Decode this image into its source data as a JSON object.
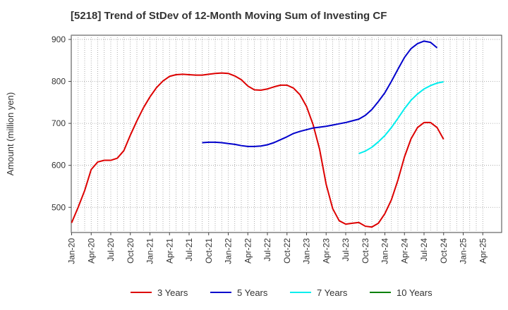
{
  "chart_data": {
    "type": "line",
    "title": "[5218]  Trend of StDev of 12-Month Moving Sum of Investing CF",
    "xlabel": "",
    "ylabel": "Amount (million yen)",
    "ylim": [
      440,
      910
    ],
    "y_ticks": [
      500,
      600,
      700,
      800,
      900
    ],
    "x_tick_labels": [
      "Jan-20",
      "Apr-20",
      "Jul-20",
      "Oct-20",
      "Jan-21",
      "Apr-21",
      "Jul-21",
      "Oct-21",
      "Jan-22",
      "Apr-22",
      "Jul-22",
      "Oct-22",
      "Jan-23",
      "Apr-23",
      "Jul-23",
      "Oct-23",
      "Jan-24",
      "Apr-24",
      "Jul-24",
      "Oct-24",
      "Jan-25",
      "Apr-25"
    ],
    "grid": true,
    "legend_position": "bottom",
    "series": [
      {
        "name": "3 Years",
        "color": "#dd0000",
        "start": "2020-01",
        "values": [
          463,
          500,
          540,
          590,
          608,
          612,
          612,
          617,
          635,
          672,
          706,
          737,
          763,
          785,
          801,
          812,
          816,
          817,
          816,
          815,
          815,
          817,
          819,
          820,
          819,
          813,
          804,
          789,
          780,
          779,
          782,
          787,
          791,
          791,
          784,
          768,
          740,
          697,
          638,
          555,
          497,
          468,
          460,
          462,
          464,
          455,
          453,
          462,
          485,
          518,
          565,
          620,
          663,
          690,
          702,
          702,
          690,
          662
        ]
      },
      {
        "name": "5 Years",
        "color": "#0000cc",
        "start": "2021-09",
        "values": [
          654,
          655,
          655,
          654,
          652,
          650,
          647,
          645,
          645,
          646,
          649,
          654,
          661,
          668,
          676,
          681,
          685,
          689,
          691,
          693,
          696,
          699,
          702,
          706,
          710,
          719,
          733,
          752,
          773,
          800,
          829,
          857,
          878,
          890,
          896,
          893,
          880
        ]
      },
      {
        "name": "7 Years",
        "color": "#00eeee",
        "start": "2023-09",
        "values": [
          628,
          634,
          643,
          656,
          671,
          690,
          712,
          735,
          755,
          770,
          782,
          790,
          796,
          799
        ]
      },
      {
        "name": "10 Years",
        "color": "#008000",
        "start": "",
        "values": []
      }
    ]
  }
}
